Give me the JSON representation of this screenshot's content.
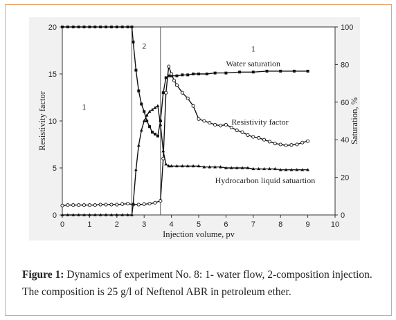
{
  "caption": {
    "label": "Figure 1:",
    "text": " Dynamics of experiment No. 8: 1- water flow, 2-composition injection. The composition is 25 g/l of Neftenol ABR in petroleum ether."
  },
  "chart_data": {
    "type": "line",
    "xlabel": "Injection volume, pv",
    "ylabel_left": "Resistivity factor",
    "ylabel_right": "Saturation, %",
    "xlim": [
      0,
      10
    ],
    "ylim_left": [
      0,
      20
    ],
    "ylim_right": [
      0,
      100
    ],
    "x_ticks": [
      "0",
      "1",
      "2",
      "3",
      "4",
      "5",
      "6",
      "7",
      "8",
      "9",
      "10"
    ],
    "y_left_ticks": [
      "0",
      "5",
      "10",
      "15",
      "20"
    ],
    "y_right_ticks": [
      "0",
      "20",
      "40",
      "60",
      "80",
      "100"
    ],
    "region_labels": [
      {
        "text": "1",
        "x": 0.8,
        "y": 11.2
      },
      {
        "text": "2",
        "x": 3.0,
        "y": 17.7
      },
      {
        "text": "1",
        "x": 7.0,
        "y": 17.4
      }
    ],
    "boundaries": [
      2.55,
      3.6
    ],
    "series": [
      {
        "name": "Water saturation",
        "axis": "right",
        "marker": "square",
        "x": [
          0,
          0.2,
          0.4,
          0.6,
          0.8,
          1,
          1.2,
          1.4,
          1.6,
          1.8,
          2,
          2.2,
          2.4,
          2.55,
          2.6,
          2.7,
          2.8,
          2.9,
          3,
          3.1,
          3.2,
          3.3,
          3.4,
          3.5,
          3.6,
          3.7,
          3.8,
          3.9,
          4,
          4.2,
          4.4,
          4.6,
          4.8,
          5,
          5.3,
          5.6,
          6,
          6.5,
          7,
          7.5,
          8,
          8.5,
          9
        ],
        "y": [
          100,
          100,
          100,
          100,
          100,
          100,
          100,
          100,
          100,
          100,
          100,
          100,
          100,
          100,
          92,
          77,
          66,
          59,
          55,
          50,
          47,
          44,
          43,
          42,
          50,
          65,
          73,
          74,
          74,
          74,
          74.5,
          74.5,
          75,
          75,
          75,
          75.5,
          75.5,
          76,
          76,
          76.5,
          76.5,
          76.5,
          76.5
        ]
      },
      {
        "name": "Resistivity factor",
        "axis": "left",
        "marker": "circle",
        "x": [
          0,
          0.2,
          0.4,
          0.6,
          0.8,
          1,
          1.2,
          1.4,
          1.6,
          1.8,
          2,
          2.2,
          2.4,
          2.6,
          2.8,
          3,
          3.2,
          3.4,
          3.6,
          3.7,
          3.8,
          3.9,
          4,
          4.1,
          4.2,
          4.4,
          4.6,
          4.8,
          5,
          5.2,
          5.4,
          5.6,
          5.8,
          6,
          6.2,
          6.4,
          6.6,
          6.8,
          7,
          7.2,
          7.4,
          7.6,
          7.8,
          8,
          8.2,
          8.4,
          8.6,
          8.8,
          9
        ],
        "y": [
          1,
          1.05,
          1.05,
          1.05,
          1.05,
          1.05,
          1.05,
          1.1,
          1.1,
          1.1,
          1.1,
          1.15,
          1.2,
          1.1,
          1.1,
          1.15,
          1.2,
          1.3,
          1.5,
          6,
          13,
          15.8,
          15,
          14.3,
          13.8,
          13,
          12.4,
          11.6,
          10.2,
          10,
          9.8,
          9.6,
          9.5,
          9.6,
          9.3,
          9,
          8.8,
          8.5,
          8.3,
          8.2,
          8,
          7.8,
          7.6,
          7.5,
          7.4,
          7.45,
          7.5,
          7.7,
          7.85
        ]
      },
      {
        "name": "Hydrocarbon liquid satuartion",
        "axis": "right",
        "marker": "triangle",
        "x": [
          0,
          0.2,
          0.4,
          0.6,
          0.8,
          1,
          1.2,
          1.4,
          1.6,
          1.8,
          2,
          2.2,
          2.4,
          2.55,
          2.6,
          2.7,
          2.8,
          2.9,
          3,
          3.1,
          3.2,
          3.3,
          3.4,
          3.5,
          3.6,
          3.7,
          3.8,
          3.9,
          4,
          4.2,
          4.4,
          4.6,
          4.8,
          5,
          5.2,
          5.4,
          5.6,
          5.8,
          6,
          6.2,
          6.4,
          6.6,
          6.8,
          7,
          7.2,
          7.4,
          7.6,
          7.8,
          8,
          8.2,
          8.4,
          8.6,
          8.8,
          9
        ],
        "y": [
          0,
          0,
          0,
          0,
          0,
          0,
          0,
          0,
          0,
          0,
          0,
          0,
          0,
          0,
          6,
          24,
          37,
          45,
          50,
          53,
          55,
          56,
          57,
          58,
          48,
          34,
          27,
          26,
          26,
          26,
          26,
          26,
          26,
          26,
          25.5,
          25.5,
          25.5,
          25.5,
          25,
          25,
          25,
          25,
          25,
          24.5,
          24.5,
          24.5,
          24.5,
          24.5,
          24,
          24,
          24,
          24,
          24,
          24
        ]
      }
    ],
    "series_labels": [
      {
        "text": "Water saturation",
        "x": 6.0,
        "y_right": 79
      },
      {
        "text": "Resistivity factor",
        "x": 6.2,
        "y_right": 48
      },
      {
        "text": "Hydrocarbon liquid satuartion",
        "x": 5.6,
        "y_right": 17
      }
    ]
  }
}
